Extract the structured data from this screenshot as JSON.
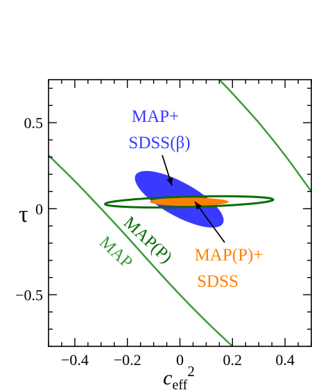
{
  "chart_data": {
    "type": "contour",
    "xlabel_main": "c",
    "xlabel_sub": "eff",
    "xlabel_sup": "2",
    "ylabel": "τ",
    "xlim": [
      -0.5,
      0.5
    ],
    "ylim": [
      -0.8,
      0.75
    ],
    "x_ticks": [
      {
        "value": -0.4,
        "label": "−0.4"
      },
      {
        "value": -0.2,
        "label": "−0.2"
      },
      {
        "value": 0,
        "label": "0"
      },
      {
        "value": 0.2,
        "label": "0.2"
      },
      {
        "value": 0.4,
        "label": "0.4"
      }
    ],
    "y_ticks": [
      {
        "value": -0.5,
        "label": "−0.5"
      },
      {
        "value": 0,
        "label": "0"
      },
      {
        "value": 0.5,
        "label": "0.5"
      }
    ],
    "colors": {
      "map": "#3a9a3a",
      "map_p": "#0b6b0b",
      "sdss_beta": "#3a3aff",
      "map_p_sdss": "#ff8000",
      "axis": "#000000"
    },
    "regions": [
      {
        "name": "MAP+ SDSS(β)",
        "kind": "filled-ellipse",
        "center": [
          0.0,
          0.045
        ],
        "x_extent": [
          -0.185,
          0.18
        ],
        "y_extent": [
          -0.12,
          0.23
        ]
      },
      {
        "name": "MAP(P)",
        "kind": "ellipse-outline",
        "center": [
          0.035,
          0.04
        ],
        "x_extent": [
          -0.285,
          0.355
        ],
        "y_extent": [
          0.01,
          0.07
        ]
      },
      {
        "name": "MAP(P)+ SDSS",
        "kind": "filled-ellipse",
        "center": [
          0.035,
          0.04
        ],
        "x_extent": [
          -0.085,
          0.155
        ],
        "y_extent": [
          0.01,
          0.07
        ]
      }
    ],
    "curves": [
      {
        "name": "MAP",
        "points": [
          [
            -0.5,
            0.31
          ],
          [
            -0.4,
            0.16
          ],
          [
            -0.3,
            0.0
          ],
          [
            -0.2,
            -0.165
          ],
          [
            -0.1,
            -0.335
          ],
          [
            0.0,
            -0.5
          ],
          [
            0.1,
            -0.655
          ],
          [
            0.2,
            -0.8
          ]
        ]
      },
      {
        "name": "MAP",
        "points": [
          [
            0.15,
            0.75
          ],
          [
            0.2,
            0.67
          ],
          [
            0.3,
            0.5
          ],
          [
            0.4,
            0.31
          ],
          [
            0.5,
            0.1
          ]
        ]
      }
    ],
    "labels": {
      "sdss_beta_line1": "MAP+",
      "sdss_beta_line2": "SDSS(β)",
      "map_p_sdss_line1": "MAP(P)+",
      "map_p_sdss_line2": "SDSS",
      "map_p": "MAP(P)",
      "map": "MAP"
    }
  }
}
